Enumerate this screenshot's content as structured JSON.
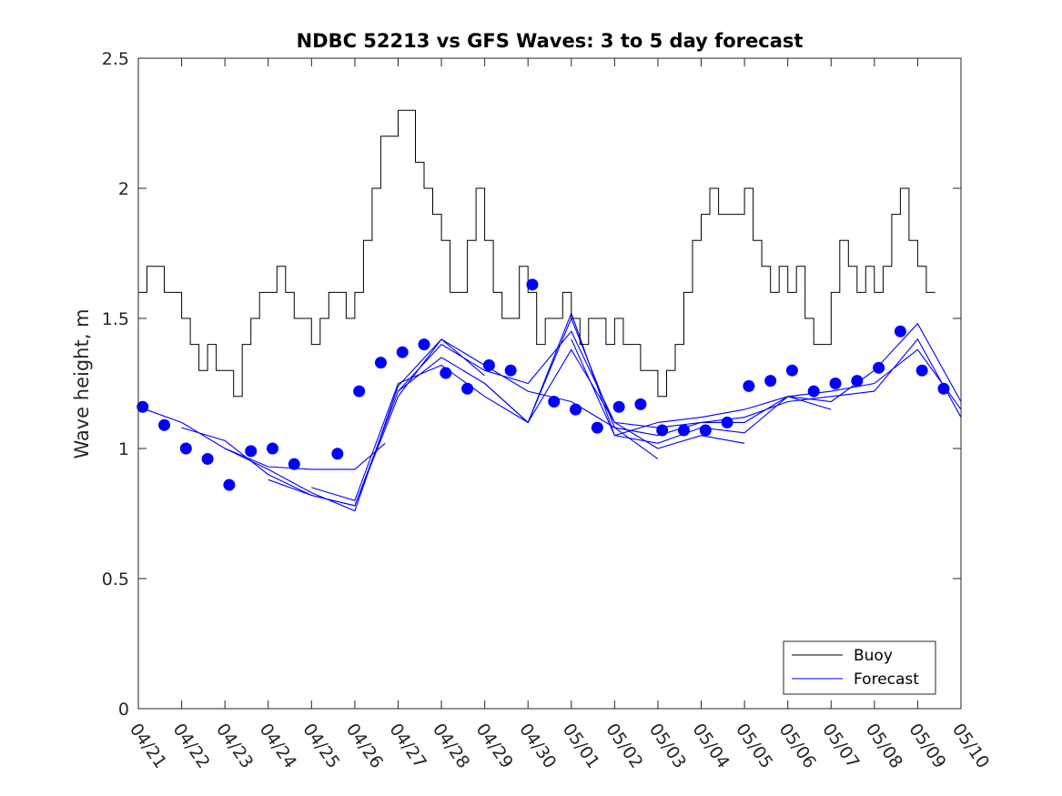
{
  "chart_data": {
    "type": "line",
    "title": "NDBC 52213 vs GFS Waves: 3 to 5 day forecast",
    "xlabel": "",
    "ylabel": "Wave height, m",
    "ylim": [
      0,
      2.5
    ],
    "yticks": [
      "0",
      "0.5",
      "1",
      "1.5",
      "2",
      "2.5"
    ],
    "x_unit": "days since 04/21 (x value 0 = 04/21)",
    "xlim": [
      0,
      19
    ],
    "xticks": [
      "04/21",
      "04/22",
      "04/23",
      "04/24",
      "04/25",
      "04/26",
      "04/27",
      "04/28",
      "04/29",
      "04/30",
      "05/01",
      "05/02",
      "05/03",
      "05/04",
      "05/05",
      "05/06",
      "05/07",
      "05/08",
      "05/09",
      "05/10"
    ],
    "grid": false,
    "legend": {
      "position": "bottom-right",
      "entries": [
        "Buoy",
        "Forecast"
      ]
    },
    "colors": {
      "buoy": "#000000",
      "forecast": "#0000ff",
      "marker": "#0000ff"
    },
    "series": [
      {
        "name": "Buoy",
        "x": [
          0,
          0.2,
          0.4,
          0.6,
          0.8,
          1.0,
          1.2,
          1.4,
          1.6,
          1.8,
          2.0,
          2.2,
          2.4,
          2.6,
          2.8,
          3.0,
          3.2,
          3.4,
          3.6,
          3.8,
          4.0,
          4.2,
          4.4,
          4.6,
          4.8,
          5.0,
          5.2,
          5.4,
          5.6,
          5.8,
          6.0,
          6.2,
          6.4,
          6.6,
          6.8,
          7.0,
          7.2,
          7.4,
          7.6,
          7.8,
          8.0,
          8.2,
          8.4,
          8.6,
          8.8,
          9.0,
          9.2,
          9.4,
          9.6,
          9.8,
          10.0,
          10.2,
          10.4,
          10.6,
          10.8,
          11.0,
          11.2,
          11.4,
          11.6,
          11.8,
          12.0,
          12.2,
          12.4,
          12.6,
          12.8,
          13.0,
          13.2,
          13.4,
          13.6,
          13.8,
          14.0,
          14.2,
          14.4,
          14.6,
          14.8,
          15.0,
          15.2,
          15.4,
          15.6,
          15.8,
          16.0,
          16.2,
          16.4,
          16.6,
          16.8,
          17.0,
          17.2,
          17.4,
          17.6,
          17.8,
          18.0,
          18.2,
          18.4
        ],
        "values": [
          1.6,
          1.7,
          1.7,
          1.6,
          1.6,
          1.5,
          1.4,
          1.3,
          1.4,
          1.3,
          1.3,
          1.2,
          1.4,
          1.5,
          1.6,
          1.6,
          1.7,
          1.6,
          1.5,
          1.5,
          1.4,
          1.5,
          1.6,
          1.6,
          1.5,
          1.6,
          1.8,
          2.0,
          2.2,
          2.2,
          2.3,
          2.3,
          2.1,
          2.0,
          1.9,
          1.8,
          1.6,
          1.6,
          1.8,
          2.0,
          1.8,
          1.6,
          1.5,
          1.5,
          1.7,
          1.6,
          1.4,
          1.5,
          1.5,
          1.6,
          1.5,
          1.4,
          1.5,
          1.5,
          1.4,
          1.5,
          1.4,
          1.4,
          1.3,
          1.3,
          1.2,
          1.3,
          1.4,
          1.6,
          1.8,
          1.9,
          2.0,
          1.9,
          1.9,
          1.9,
          2.0,
          1.8,
          1.7,
          1.6,
          1.7,
          1.6,
          1.7,
          1.5,
          1.4,
          1.4,
          1.6,
          1.8,
          1.7,
          1.6,
          1.7,
          1.6,
          1.7,
          1.9,
          2.0,
          1.8,
          1.7,
          1.6,
          1.6
        ]
      },
      {
        "name": "Forecast",
        "runs": [
          {
            "x": [
              0,
              1,
              2,
              3,
              4,
              5,
              5.7
            ],
            "values": [
              1.16,
              1.1,
              1.0,
              0.93,
              0.92,
              0.92,
              1.02
            ]
          },
          {
            "x": [
              1,
              2,
              3,
              4,
              5,
              6,
              7,
              8
            ],
            "values": [
              1.08,
              1.03,
              0.9,
              0.82,
              0.78,
              1.2,
              1.42,
              1.28
            ]
          },
          {
            "x": [
              2,
              3,
              4,
              5,
              6,
              7,
              8,
              9,
              10,
              11,
              12
            ],
            "values": [
              1.0,
              0.92,
              0.83,
              0.76,
              1.24,
              1.42,
              1.32,
              1.22,
              1.18,
              1.08,
              0.96
            ]
          },
          {
            "x": [
              3,
              4,
              5,
              6,
              7,
              8,
              9,
              10,
              11,
              12,
              13,
              14
            ],
            "values": [
              0.88,
              0.82,
              0.78,
              1.22,
              1.35,
              1.25,
              1.1,
              1.38,
              1.1,
              1.0,
              1.05,
              1.02
            ]
          },
          {
            "x": [
              4,
              5,
              6,
              7,
              8,
              9,
              10,
              11,
              12,
              13,
              14,
              15,
              16
            ],
            "values": [
              0.85,
              0.8,
              1.25,
              1.32,
              1.2,
              1.1,
              1.52,
              1.05,
              1.02,
              1.08,
              1.06,
              1.2,
              1.15
            ]
          },
          {
            "x": [
              6,
              7,
              8,
              9,
              10,
              11,
              12,
              13,
              14,
              15,
              16,
              17,
              18,
              19
            ],
            "values": [
              1.22,
              1.4,
              1.3,
              1.25,
              1.45,
              1.1,
              1.08,
              1.1,
              1.1,
              1.2,
              1.22,
              1.25,
              1.38,
              1.15
            ]
          },
          {
            "x": [
              8,
              9,
              10,
              11,
              12,
              13,
              14,
              15,
              16,
              17,
              18,
              19
            ],
            "values": [
              1.25,
              1.1,
              1.5,
              1.08,
              1.05,
              1.1,
              1.12,
              1.18,
              1.2,
              1.22,
              1.42,
              1.12
            ]
          },
          {
            "x": [
              10,
              11,
              12,
              13,
              14,
              15,
              16,
              17,
              18,
              19
            ],
            "values": [
              1.42,
              1.05,
              1.1,
              1.12,
              1.15,
              1.2,
              1.18,
              1.3,
              1.48,
              1.18
            ]
          }
        ]
      }
    ],
    "markers": {
      "x": [
        0.1,
        0.6,
        1.1,
        1.6,
        2.1,
        2.6,
        3.1,
        3.6,
        4.6,
        5.1,
        5.6,
        6.1,
        6.6,
        7.1,
        7.6,
        8.1,
        8.6,
        9.1,
        9.6,
        10.1,
        10.6,
        11.1,
        11.6,
        12.1,
        12.6,
        13.1,
        13.6,
        14.1,
        14.6,
        15.1,
        15.6,
        16.1,
        16.6,
        17.1,
        17.6,
        18.1,
        18.6
      ],
      "values": [
        1.16,
        1.09,
        1.0,
        0.96,
        0.86,
        0.99,
        1.0,
        0.94,
        0.98,
        1.22,
        1.33,
        1.37,
        1.4,
        1.29,
        1.23,
        1.32,
        1.3,
        1.63,
        1.18,
        1.15,
        1.08,
        1.16,
        1.17,
        1.07,
        1.07,
        1.07,
        1.1,
        1.24,
        1.26,
        1.3,
        1.22,
        1.25,
        1.26,
        1.31,
        1.45,
        1.3,
        1.23
      ]
    }
  }
}
